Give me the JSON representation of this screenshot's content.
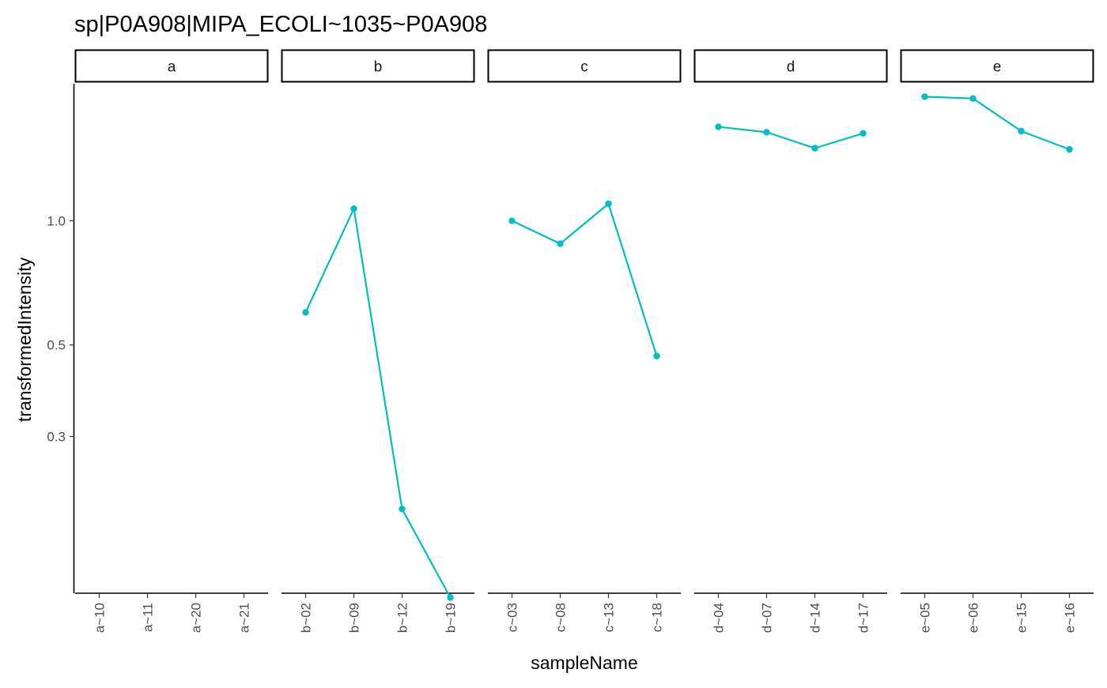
{
  "chart_data": {
    "type": "line",
    "title": "sp|P0A908|MIPA_ECOLI~1035~P0A908",
    "xlabel": "sampleName",
    "ylabel": "transformedIntensity",
    "y_scale": "log",
    "ylim": [
      0.125,
      2.15
    ],
    "y_ticks": [
      0.3,
      0.5,
      1.0
    ],
    "y_tick_labels": [
      "0.3",
      "0.5",
      "1.0"
    ],
    "grid": false,
    "line_color": "#00BFC4",
    "facets": [
      {
        "label": "a",
        "categories": [
          "a~10",
          "a~11",
          "a~20",
          "a~21"
        ],
        "values": [
          null,
          null,
          null,
          null
        ]
      },
      {
        "label": "b",
        "categories": [
          "b~02",
          "b~09",
          "b~12",
          "b~19"
        ],
        "values": [
          0.6,
          1.07,
          0.2,
          0.122
        ]
      },
      {
        "label": "c",
        "categories": [
          "c~03",
          "c~08",
          "c~13",
          "c~18"
        ],
        "values": [
          1.0,
          0.88,
          1.1,
          0.47
        ]
      },
      {
        "label": "d",
        "categories": [
          "d~04",
          "d~07",
          "d~14",
          "d~17"
        ],
        "values": [
          1.69,
          1.64,
          1.5,
          1.63
        ]
      },
      {
        "label": "e",
        "categories": [
          "e~05",
          "e~06",
          "e~15",
          "e~16"
        ],
        "values": [
          2.0,
          1.98,
          1.65,
          1.49
        ]
      }
    ]
  }
}
